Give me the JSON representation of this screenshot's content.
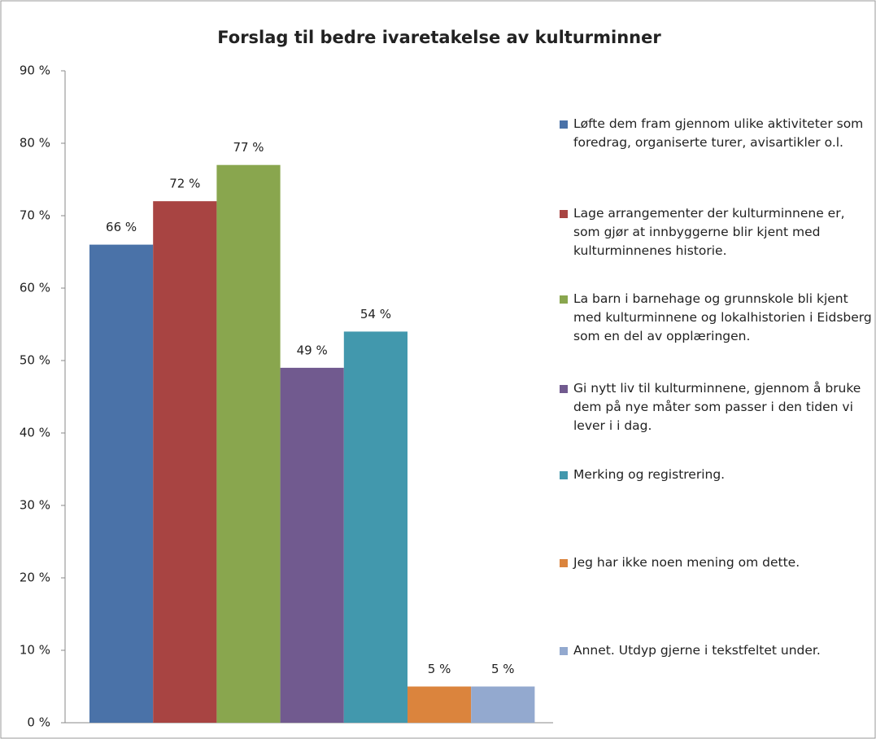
{
  "chart_data": {
    "type": "bar",
    "title": "Forslag til bedre ivaretakelse av kulturminner",
    "categories": [
      null
    ],
    "series": [
      {
        "name": "Løfte dem fram gjennom ulike aktiviteter som foredrag, organiserte turer, avisartikler o.l.",
        "color": "#4a72a8",
        "values": [
          66
        ],
        "value_labels": [
          "66 %"
        ]
      },
      {
        "name": "Lage arrangementer der kulturminnene er, som gjør at innbyggerne blir kjent med kulturminnenes historie.",
        "color": "#a84442",
        "values": [
          72
        ],
        "value_labels": [
          "72 %"
        ]
      },
      {
        "name": "La barn i barnehage og grunnskole bli kjent med kulturminnene og lokalhistorien i Eidsberg som en del av opplæringen.",
        "color": "#89a64e",
        "values": [
          77
        ],
        "value_labels": [
          "77 %"
        ]
      },
      {
        "name": "Gi nytt liv til kulturminnene, gjennom å bruke dem på nye måter som passer i den tiden vi lever i i dag.",
        "color": "#715a8f",
        "values": [
          49
        ],
        "value_labels": [
          "49 %"
        ]
      },
      {
        "name": "Merking og registrering.",
        "color": "#4298ad",
        "values": [
          54
        ],
        "value_labels": [
          "54 %"
        ]
      },
      {
        "name": "Jeg har ikke noen mening om dette.",
        "color": "#db843d",
        "values": [
          5
        ],
        "value_labels": [
          "5 %"
        ]
      },
      {
        "name": "Annet. Utdyp gjerne i tekstfeltet under.",
        "color": "#93a9cf",
        "values": [
          5
        ],
        "value_labels": [
          "5 %"
        ]
      }
    ],
    "ylim": [
      0,
      90
    ],
    "yticks": [
      {
        "value": 0,
        "label": "0 %"
      },
      {
        "value": 10,
        "label": "10 %"
      },
      {
        "value": 20,
        "label": "20 %"
      },
      {
        "value": 30,
        "label": "30 %"
      },
      {
        "value": 40,
        "label": "40 %"
      },
      {
        "value": 50,
        "label": "50 %"
      },
      {
        "value": 60,
        "label": "60 %"
      },
      {
        "value": 70,
        "label": "70 %"
      },
      {
        "value": 80,
        "label": "80 %"
      },
      {
        "value": 90,
        "label": "90 %"
      }
    ],
    "legend": "right"
  }
}
